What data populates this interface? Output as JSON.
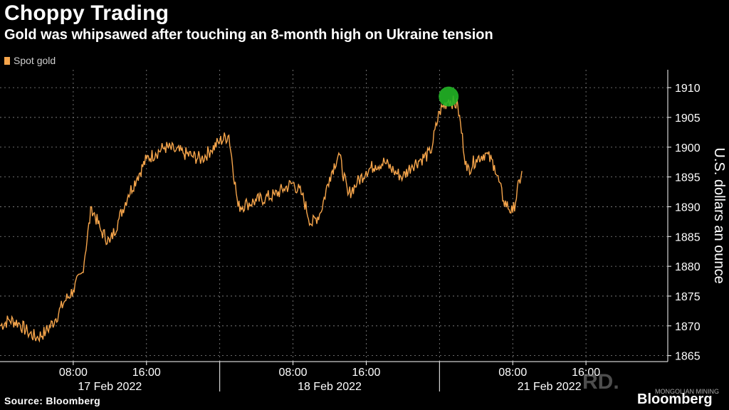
{
  "title": "Choppy Trading",
  "subtitle": "Gold was whipsawed after touching an 8-month high on Ukraine tension",
  "source": "Source: Bloomberg",
  "brand": "Bloomberg",
  "watermark": "RD.",
  "watermark_small": "MONGOLIAN MINING",
  "colors": {
    "series": "#f6a54b",
    "marker": "#22b526",
    "grid": "#8a8a8a"
  },
  "chart_data": {
    "type": "line",
    "title": "Choppy Trading",
    "subtitle": "Gold was whipsawed after touching an 8-month high on Ukraine tension",
    "xlabel": "",
    "ylabel": "U.S. dollars an ounce",
    "ylim": [
      1864,
      1913
    ],
    "yticks": [
      1865,
      1870,
      1875,
      1880,
      1885,
      1890,
      1895,
      1900,
      1905,
      1910
    ],
    "grid": true,
    "legend": "top-left",
    "x_time_labels": [
      "08:00",
      "16:00",
      "08:00",
      "16:00",
      "08:00",
      "16:00"
    ],
    "x_date_labels": [
      "17 Feb 2022",
      "18 Feb 2022",
      "21 Feb 2022"
    ],
    "series": [
      {
        "name": "Spot gold",
        "x": [
          "17 Feb 00:00",
          "17 Feb 01:00",
          "17 Feb 02:00",
          "17 Feb 03:00",
          "17 Feb 04:00",
          "17 Feb 05:00",
          "17 Feb 06:00",
          "17 Feb 07:00",
          "17 Feb 08:00",
          "17 Feb 09:00",
          "17 Feb 10:00",
          "17 Feb 11:00",
          "17 Feb 12:00",
          "17 Feb 13:00",
          "17 Feb 14:00",
          "17 Feb 15:00",
          "17 Feb 16:00",
          "17 Feb 17:00",
          "17 Feb 18:00",
          "17 Feb 19:00",
          "17 Feb 20:00",
          "17 Feb 21:00",
          "17 Feb 22:00",
          "17 Feb 23:00",
          "18 Feb 00:00",
          "18 Feb 01:00",
          "18 Feb 02:00",
          "18 Feb 03:00",
          "18 Feb 04:00",
          "18 Feb 05:00",
          "18 Feb 06:00",
          "18 Feb 07:00",
          "18 Feb 08:00",
          "18 Feb 09:00",
          "18 Feb 10:00",
          "18 Feb 11:00",
          "18 Feb 12:00",
          "18 Feb 13:00",
          "18 Feb 14:00",
          "18 Feb 15:00",
          "18 Feb 16:00",
          "18 Feb 17:00",
          "18 Feb 18:00",
          "18 Feb 19:00",
          "18 Feb 20:00",
          "18 Feb 21:00",
          "18 Feb 22:00",
          "18 Feb 23:00",
          "21 Feb 00:00",
          "21 Feb 01:00",
          "21 Feb 02:00",
          "21 Feb 03:00",
          "21 Feb 04:00",
          "21 Feb 05:00",
          "21 Feb 06:00",
          "21 Feb 07:00",
          "21 Feb 08:00",
          "21 Feb 09:00"
        ],
        "values": [
          1870,
          1871,
          1870.5,
          1869,
          1868,
          1869,
          1871,
          1874,
          1876,
          1879,
          1890,
          1886,
          1884,
          1888,
          1892,
          1895,
          1898,
          1899,
          1900,
          1899.5,
          1899,
          1898.5,
          1898,
          1899.5,
          1901,
          1902,
          1890,
          1890.5,
          1891,
          1891.5,
          1892,
          1893,
          1894,
          1892,
          1887,
          1889,
          1895,
          1899,
          1892,
          1894,
          1896,
          1897,
          1897.5,
          1896,
          1895,
          1897,
          1898,
          1899,
          1906,
          1908,
          1907,
          1896,
          1898,
          1899,
          1897,
          1891,
          1889,
          1896
        ]
      }
    ],
    "annotations": [
      {
        "type": "circle-marker",
        "x": "21 Feb 01:00",
        "y": 1908.5,
        "meaning": "8-month high"
      }
    ]
  }
}
